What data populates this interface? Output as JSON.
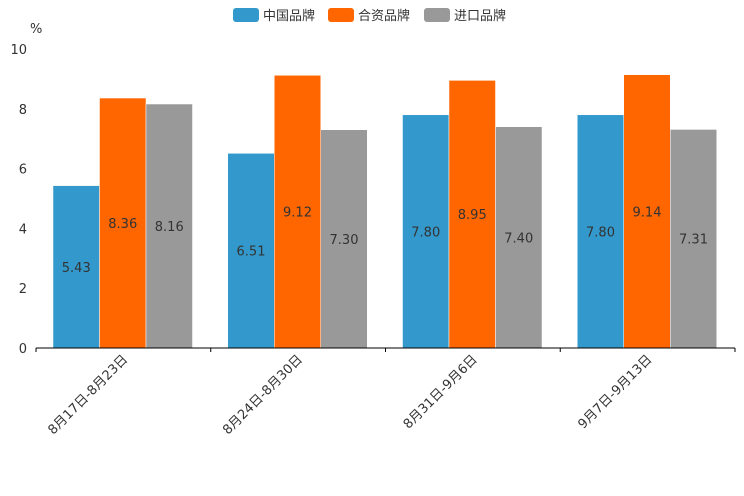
{
  "chart_data": {
    "type": "bar",
    "categories": [
      "8月17日-8月23日",
      "8月24日-8月30日",
      "8月31日-9月6日",
      "9月7日-9月13日"
    ],
    "series": [
      {
        "name": "中国品牌",
        "color": "#3399CC",
        "values": [
          5.43,
          6.51,
          7.8,
          7.8
        ],
        "labels": [
          "5.43",
          "6.51",
          "7.80",
          "7.80"
        ]
      },
      {
        "name": "合资品牌",
        "color": "#FF6600",
        "values": [
          8.36,
          9.12,
          8.95,
          9.14
        ],
        "labels": [
          "8.36",
          "9.12",
          "8.95",
          "9.14"
        ]
      },
      {
        "name": "进口品牌",
        "color": "#999999",
        "values": [
          8.16,
          7.3,
          7.4,
          7.31
        ],
        "labels": [
          "8.16",
          "7.30",
          "7.40",
          "7.31"
        ]
      }
    ],
    "ylabel": "%",
    "ylim": [
      0,
      10
    ],
    "yticks": [
      "0",
      "2",
      "4",
      "6",
      "8",
      "10"
    ],
    "grid": false,
    "legend_position": "top-center"
  }
}
